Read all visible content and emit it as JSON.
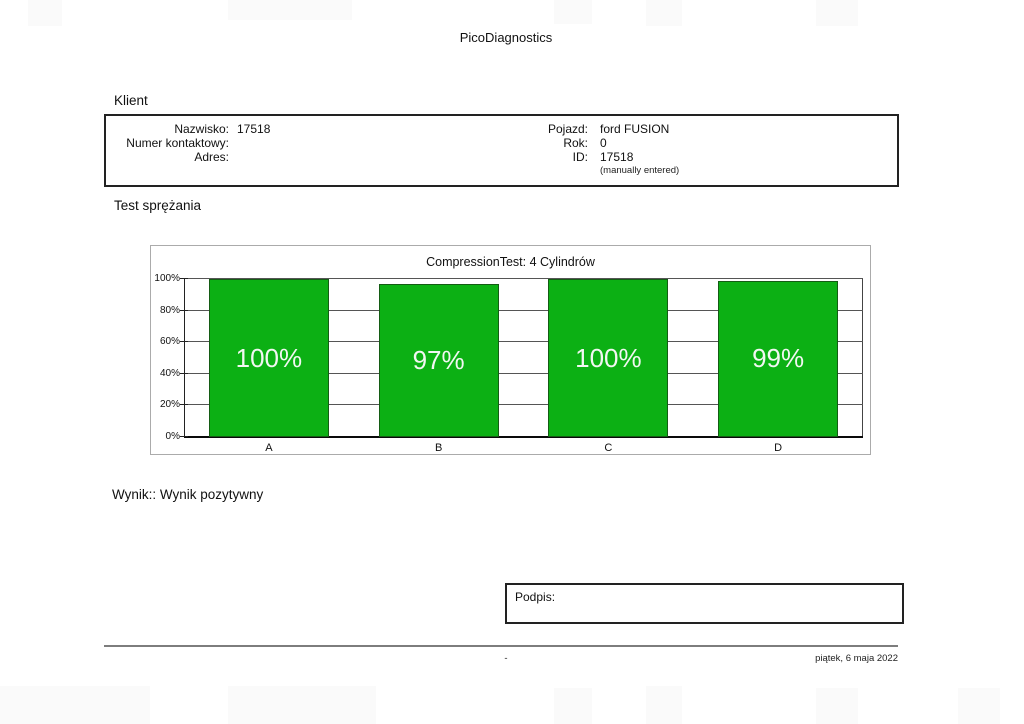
{
  "header": {
    "title": "PicoDiagnostics"
  },
  "client": {
    "section_title": "Klient",
    "left_fields": [
      {
        "label": "Nazwisko:",
        "value": "17518"
      },
      {
        "label": "Numer kontaktowy:",
        "value": ""
      },
      {
        "label": "Adres:",
        "value": ""
      }
    ],
    "right_fields": [
      {
        "label": "Pojazd:",
        "value": "ford FUSION"
      },
      {
        "label": "Rok:",
        "value": "0"
      },
      {
        "label": "ID:",
        "value": "17518"
      }
    ],
    "note": "(manually entered)"
  },
  "test_section": {
    "title": "Test sprężania"
  },
  "chart_data": {
    "type": "bar",
    "title": "CompressionTest: 4 Cylindrów",
    "categories": [
      "A",
      "B",
      "C",
      "D"
    ],
    "values": [
      100,
      97,
      100,
      99
    ],
    "value_labels": [
      "100%",
      "97%",
      "100%",
      "99%"
    ],
    "ylabel": "",
    "xlabel": "",
    "ylim": [
      0,
      100
    ],
    "ytick_step": 20,
    "yticks": [
      "0%",
      "20%",
      "40%",
      "60%",
      "80%",
      "100%"
    ],
    "grid": true,
    "legend": false,
    "bar_color": "#0cb014"
  },
  "result": {
    "text": "Wynik:: Wynik pozytywny"
  },
  "signature": {
    "label": "Podpis:"
  },
  "footer": {
    "center": "-",
    "date": "piątek, 6 maja 2022"
  }
}
